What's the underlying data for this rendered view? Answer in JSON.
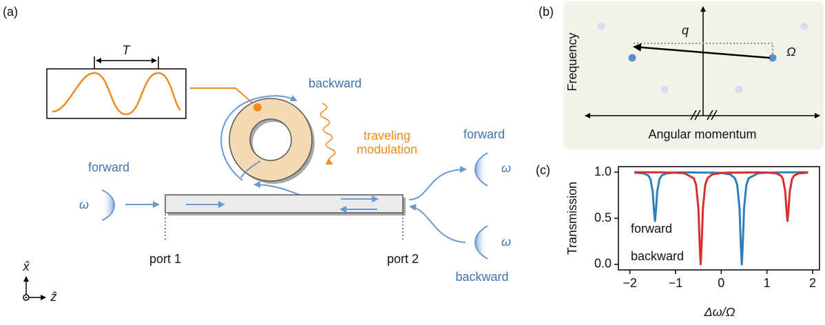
{
  "panel_a": {
    "label": "(a)",
    "period": "T",
    "ring_label": "backward",
    "modulation": [
      "traveling",
      "modulation"
    ],
    "input_label": "forward",
    "input_freq": "ω",
    "output_forward": "forward",
    "output_forward_freq": "ω",
    "input_backward": "backward",
    "input_backward_freq": "ω",
    "ports": [
      "port 1",
      "port 2"
    ],
    "axes": [
      "x̂",
      "ẑ"
    ]
  },
  "panel_b": {
    "label": "(b)",
    "wavevector": "q",
    "frequency_shift": "Ω",
    "ylabel": "Frequency",
    "xlabel": "Angular momentum"
  },
  "chart_data": {
    "type": "line",
    "label": "(c)",
    "xlabel": "Δω/Ω",
    "ylabel": "Transmission",
    "x": [
      -1.9,
      -1.7,
      -1.6,
      -1.55,
      -1.5,
      -1.47,
      -1.45,
      -1.43,
      -1.4,
      -1.35,
      -1.3,
      -1.2,
      -1.0,
      -0.8,
      -0.6,
      -0.55,
      -0.5,
      -0.47,
      -0.45,
      -0.43,
      -0.4,
      -0.35,
      -0.3,
      -0.2,
      0,
      0.2,
      0.3,
      0.35,
      0.4,
      0.43,
      0.45,
      0.47,
      0.5,
      0.55,
      0.6,
      0.8,
      1.0,
      1.2,
      1.3,
      1.35,
      1.4,
      1.43,
      1.45,
      1.47,
      1.5,
      1.55,
      1.6,
      1.7,
      1.9
    ],
    "series": [
      {
        "name": "forward",
        "color": "#2e7ebc",
        "values": [
          0.996,
          0.987,
          0.965,
          0.927,
          0.793,
          0.576,
          0.47,
          0.576,
          0.793,
          0.927,
          0.965,
          0.987,
          0.996,
          0.998,
          0.997,
          0.997,
          0.996,
          0.996,
          0.996,
          0.996,
          0.996,
          0.995,
          0.995,
          0.996,
          0.992,
          0.975,
          0.934,
          0.862,
          0.61,
          0.2,
          0,
          0.2,
          0.61,
          0.862,
          0.934,
          0.987,
          0.995,
          0.997,
          0.998,
          0.998,
          0.998,
          0.998,
          0.998,
          0.998,
          0.998,
          0.998,
          0.998,
          0.999,
          0.999
        ]
      },
      {
        "name": "backward",
        "color": "#d62f2f",
        "values": [
          0.999,
          0.999,
          0.998,
          0.998,
          0.998,
          0.998,
          0.998,
          0.998,
          0.998,
          0.998,
          0.998,
          0.997,
          0.995,
          0.987,
          0.934,
          0.862,
          0.61,
          0.2,
          0,
          0.2,
          0.61,
          0.862,
          0.934,
          0.975,
          0.992,
          0.996,
          0.995,
          0.995,
          0.996,
          0.996,
          0.996,
          0.996,
          0.996,
          0.997,
          0.997,
          0.998,
          0.996,
          0.987,
          0.965,
          0.927,
          0.793,
          0.576,
          0.47,
          0.576,
          0.793,
          0.927,
          0.965,
          0.987,
          0.996
        ]
      }
    ],
    "xlim": [
      -2.25,
      2.15
    ],
    "ylim": [
      -0.06,
      1.06
    ],
    "xticks": [
      {
        "value": -2,
        "label": "−2"
      },
      {
        "value": -1,
        "label": "−1"
      },
      0,
      1,
      2
    ],
    "yticks": [
      {
        "value": 0,
        "label": "0.0"
      },
      0.5,
      {
        "value": 1,
        "label": "1.0"
      }
    ]
  }
}
